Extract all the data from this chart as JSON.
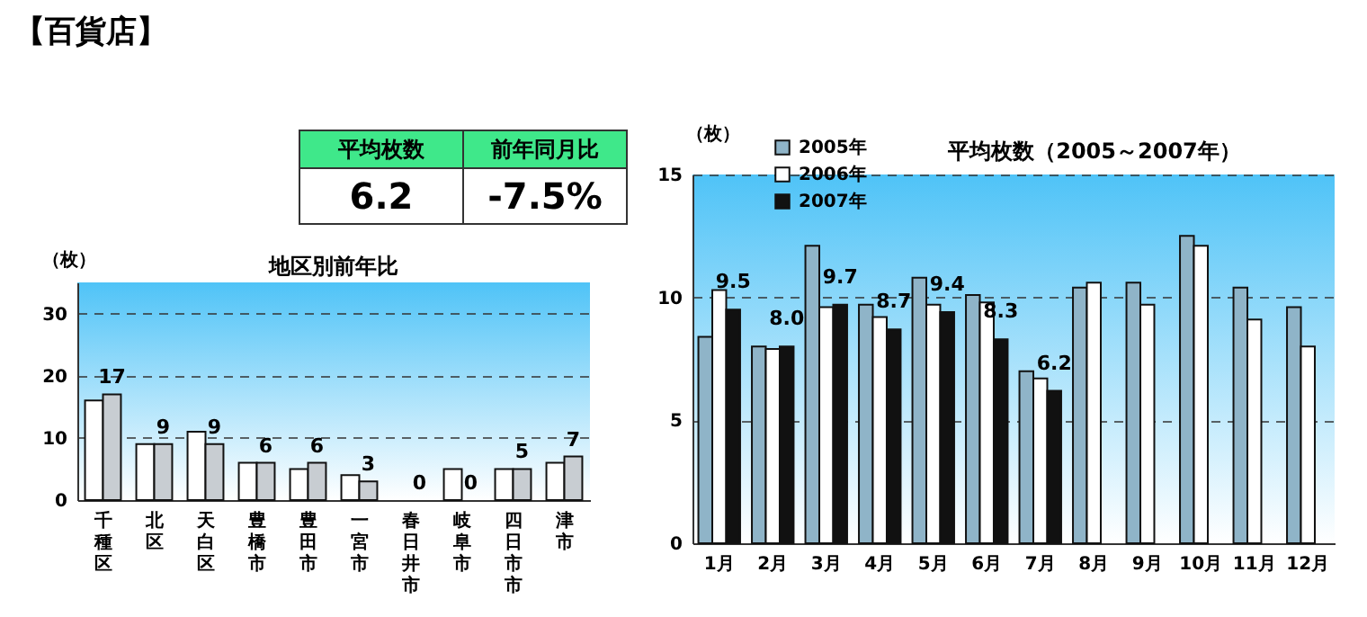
{
  "chart_data": [
    {
      "type": "other",
      "title": "【百貨店】",
      "categories": [
        "平均枚数",
        "前年同月比"
      ],
      "annotations": [
        "6.2",
        "-7.5%"
      ]
    },
    {
      "type": "bar",
      "title": "地区別前年比",
      "ylabel": "（枚）",
      "categories": [
        "千種区",
        "北区",
        "天白区",
        "豊橋市",
        "豊田市",
        "一宮市",
        "春日井市",
        "岐阜市",
        "四日市市",
        "津市"
      ],
      "series": [
        {
          "color": "#ffffff",
          "values": [
            16,
            9,
            11,
            6,
            5,
            4,
            0,
            5,
            5,
            6
          ]
        },
        {
          "color": "#c8cdd2",
          "values": [
            17,
            9,
            9,
            6,
            6,
            3,
            0,
            0,
            5,
            7
          ],
          "value_labels": [
            "17",
            "9",
            "9",
            "6",
            "6",
            "3",
            "0",
            "0",
            "5",
            "7"
          ]
        }
      ],
      "ylim": [
        0,
        35
      ],
      "yticks": [
        0,
        10,
        20,
        30
      ],
      "grid": "y"
    },
    {
      "type": "bar",
      "title": "平均枚数（2005～2007年）",
      "ylabel": "（枚）",
      "categories": [
        "1月",
        "2月",
        "3月",
        "4月",
        "5月",
        "6月",
        "7月",
        "8月",
        "9月",
        "10月",
        "11月",
        "12月"
      ],
      "series": [
        {
          "name": "2005年",
          "color": "#8fb4c8",
          "values": [
            8.4,
            8.0,
            12.1,
            9.7,
            10.8,
            10.1,
            7.0,
            10.4,
            10.6,
            12.5,
            10.4,
            9.6
          ]
        },
        {
          "name": "2006年",
          "color": "#ffffff",
          "values": [
            10.3,
            7.9,
            9.6,
            9.2,
            9.7,
            9.8,
            6.7,
            10.6,
            9.7,
            12.1,
            9.1,
            8.0
          ]
        },
        {
          "name": "2007年",
          "color": "#111111",
          "values": [
            9.5,
            8.0,
            9.7,
            8.7,
            9.4,
            8.3,
            6.2,
            null,
            null,
            null,
            null,
            null
          ],
          "value_labels": [
            "9.5",
            "8.0",
            "9.7",
            "8.7",
            "9.4",
            "8.3",
            "6.2",
            null,
            null,
            null,
            null,
            null
          ]
        }
      ],
      "ylim": [
        0,
        15
      ],
      "yticks": [
        0,
        5,
        10,
        15
      ],
      "grid": "y",
      "legend": "top left"
    }
  ]
}
